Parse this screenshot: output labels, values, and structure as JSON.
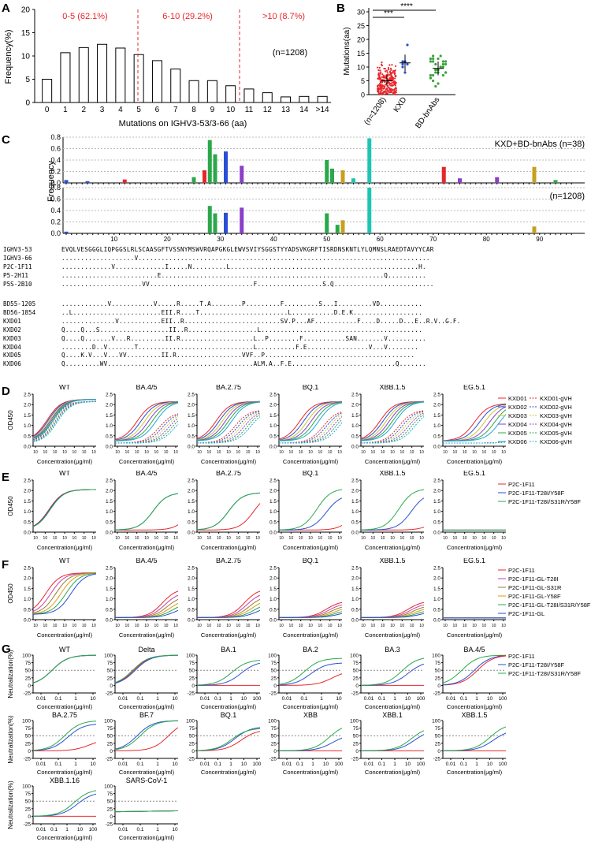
{
  "figure": {
    "labels": [
      "A",
      "B",
      "C",
      "D",
      "E",
      "F",
      "G"
    ]
  },
  "panelA": {
    "label": "A",
    "ylabel": "Frequency(%)",
    "xlabel": "Mutations on IGHV3-53/3-66 (aa)",
    "n_label": "(n=1208)",
    "group_labels": [
      "0-5 (62.1%)",
      "6-10 (29.2%)",
      ">10 (8.7%)"
    ],
    "group_color": "#e8262b",
    "yticks": [
      "0",
      "5",
      "10",
      "15",
      "20"
    ]
  },
  "panelB": {
    "label": "B",
    "ylabel": "Mutations(aa)",
    "yticks": [
      "0",
      "5",
      "10",
      "15",
      "20",
      "25",
      "30"
    ],
    "categories": [
      "(n=1208)",
      "KXD",
      "BD-bnAbs"
    ],
    "sig": [
      "***",
      "****"
    ],
    "colors": [
      "#e8262b",
      "#2a4fd4",
      "#3aa33a"
    ]
  },
  "panelC": {
    "label": "C",
    "ylabel": "Frequency",
    "logo1_label": "KXD+BD-bnAbs (n=38)",
    "logo2_label": "(n=1208)",
    "yticks": [
      "0.0",
      "0.2",
      "0.4",
      "0.6",
      "0.8"
    ],
    "xticks": [
      "10",
      "20",
      "30",
      "40",
      "50",
      "60",
      "70",
      "80",
      "90"
    ],
    "sequences": [
      {
        "name": "IGHV3-53",
        "seq": "EVQLVESGGGLIQPGGSLRLSCAASGFTVSSNYMSWVRQAPGKGLEWVSVIYSGGSTYYADSVKGRFTISRDNSKNTLYLQMNSLRAEDTAVYYCAR"
      },
      {
        "name": "IGHV3-66",
        "seq": "...................V............................................................................"
      },
      {
        "name": "P2C-1F11",
        "seq": ".............V.............I.....N.........L.................................................H."
      },
      {
        "name": "P5-2H11",
        "seq": ".........................E..........................................................Q.........."
      },
      {
        "name": "P5S-2B10",
        "seq": ".....................VV...........................F.................S.Q.........................."
      },
      {
        "name": "BD55-1205",
        "seq": "............V...........V.....R.....T.A........P.........F.........S...I.........VD..........."
      },
      {
        "name": "BD56-1854",
        "seq": "..L.......................EII.R....T.......................L...........D.E.K.................."
      },
      {
        "name": "KXD01",
        "seq": "..............V...........EII..R.........................SV.P...AF...........F....D.....D...E..R.V..G.F."
      },
      {
        "name": "KXD02",
        "seq": "Q....Q...S..................II..R..................L.........................................."
      },
      {
        "name": "KXD03",
        "seq": "Q....Q.......V...R.........II.R...................L..P........F...........SAN.......V.........."
      },
      {
        "name": "KXD04",
        "seq": "........D..V.......T..............................L..........F.E................V...V........"
      },
      {
        "name": "KXD05",
        "seq": "Q....K.V...V...VV.........II.R.................VVF..P......................................."
      },
      {
        "name": "KXD06",
        "seq": "Q.........WV......................................ALM.A..F.E...........................Q......."
      }
    ]
  },
  "panelD": {
    "label": "D",
    "ylabel": "OD450",
    "xlabel": "Concentration(μg/ml)",
    "titles": [
      "WT",
      "BA.4/5",
      "BA.2.75",
      "BQ.1",
      "XBB.1.5",
      "EG.5.1"
    ],
    "yticks": [
      "0.0",
      "0.5",
      "1.0",
      "1.5",
      "2.0",
      "2.5"
    ],
    "legend_solid": [
      "KXD01",
      "KXD02",
      "KXD03",
      "KXD04",
      "KXD05",
      "KXD06"
    ],
    "legend_dashed": [
      "KXD01-gVH",
      "KXD02-gVH",
      "KXD03-gVH",
      "KXD04-gVH",
      "KXD05-gVH",
      "KXD06-gVH"
    ],
    "colors": [
      "#e8262b",
      "#2a4fd4",
      "#c8c830",
      "#8b3fc7",
      "#2aa84a",
      "#1fa9d6"
    ]
  },
  "panelE": {
    "label": "E",
    "ylabel": "OD450",
    "xlabel": "Concentration(μg/ml)",
    "titles": [
      "WT",
      "BA.4/5",
      "BA.2.75",
      "BQ.1",
      "XBB.1.5",
      "EG.5.1"
    ],
    "yticks": [
      "0.0",
      "0.5",
      "1.0",
      "1.5",
      "2.0",
      "2.5"
    ],
    "legend": [
      "P2C-1F11",
      "P2C-1F11-T28I/Y58F",
      "P2C-1F11-T28I/S31R/Y58F"
    ],
    "colors": [
      "#e8262b",
      "#2a4fd4",
      "#2aa84a"
    ]
  },
  "panelF": {
    "label": "F",
    "ylabel": "OD450",
    "xlabel": "Concentration(μg/ml)",
    "titles": [
      "WT",
      "BA.4/5",
      "BA.2.75",
      "BQ.1",
      "XBB.1.5",
      "EG.5.1"
    ],
    "yticks": [
      "0.0",
      "0.5",
      "1.0",
      "1.5",
      "2.0",
      "2.5"
    ],
    "legend": [
      "P2C-1F11",
      "P2C-1F11-GL-T28I",
      "P2C-1F11-GL-S31R",
      "P2C-1F11-GL-Y58F",
      "P2C-1F11-GL-T28I/S31R/Y58F",
      "P2C-1F11-GL"
    ],
    "colors": [
      "#e8262b",
      "#c93fb0",
      "#9a7d2a",
      "#d89a1a",
      "#2aa84a",
      "#2a4fd4"
    ]
  },
  "panelG": {
    "label": "G",
    "ylabel": "Neutralization(%)",
    "xlabel": "Concentration(μg/ml)",
    "titles": [
      "WT",
      "Delta",
      "BA.1",
      "BA.2",
      "BA.3",
      "BA.4/5",
      "BA.2.75",
      "BF.7",
      "BQ.1",
      "XBB",
      "XBB.1",
      "XBB.1.5",
      "XBB.1.16",
      "SARS-CoV-1"
    ],
    "yticks": [
      "-25",
      "0",
      "25",
      "50",
      "75",
      "100"
    ],
    "xticks_a": [
      "0.01",
      "0.1",
      "1",
      "10"
    ],
    "xticks_b": [
      "0.01",
      "0.1",
      "1",
      "10",
      "100"
    ],
    "legend": [
      "P2C-1F11",
      "P2C-1F11-T28I/Y58F",
      "P2C-1F11-T28I/S31R/Y58F"
    ],
    "colors": [
      "#e8262b",
      "#2a4fd4",
      "#2aa84a"
    ]
  }
}
